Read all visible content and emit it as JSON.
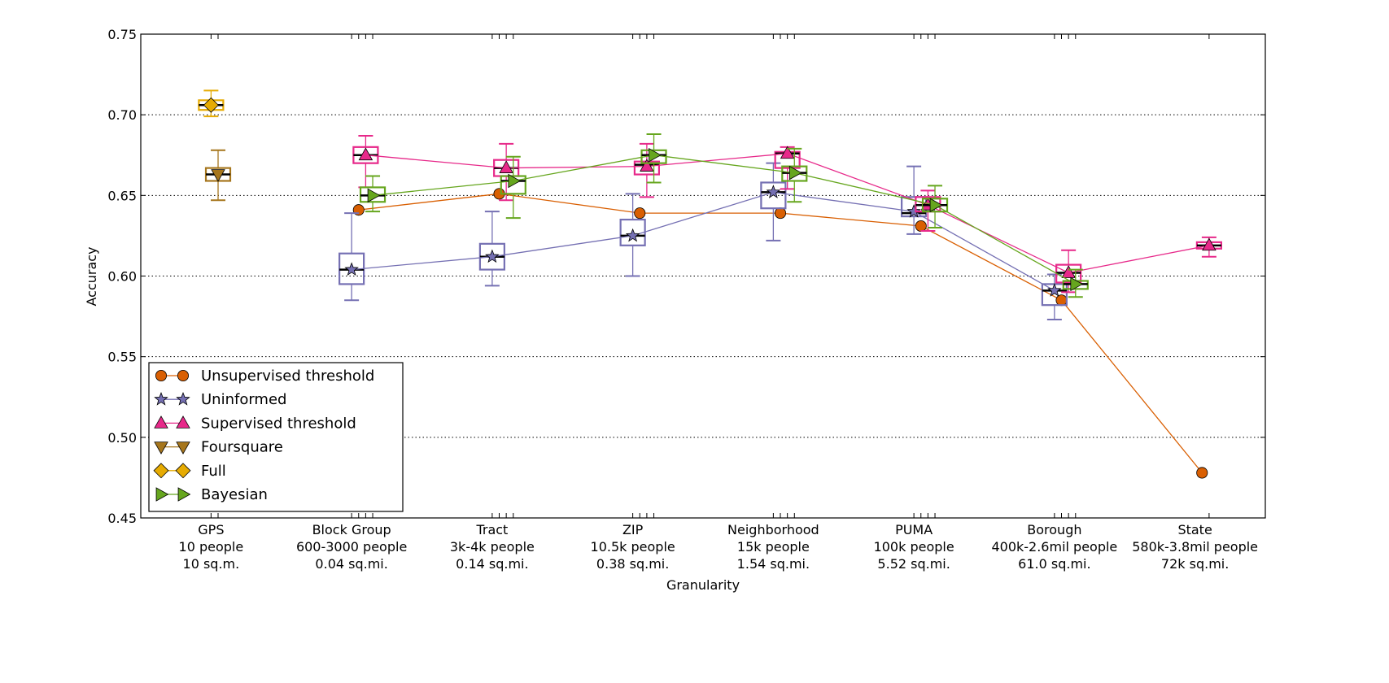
{
  "chart_data": {
    "type": "line",
    "title": "",
    "xlabel": "Granularity",
    "ylabel": "Accuracy",
    "ylim": [
      0.45,
      0.75
    ],
    "yticks": [
      "0.45",
      "0.50",
      "0.55",
      "0.60",
      "0.65",
      "0.70",
      "0.75"
    ],
    "grid": "horizontal dotted",
    "legend_position": "lower-left",
    "categories": [
      {
        "name": "GPS",
        "people": "10 people",
        "area": "10 sq.m."
      },
      {
        "name": "Block Group",
        "people": "600-3000 people",
        "area": "0.04 sq.mi."
      },
      {
        "name": "Tract",
        "people": "3k-4k people",
        "area": "0.14 sq.mi."
      },
      {
        "name": "ZIP",
        "people": "10.5k people",
        "area": "0.38 sq.mi."
      },
      {
        "name": "Neighborhood",
        "people": "15k people",
        "area": "1.54 sq.mi."
      },
      {
        "name": "PUMA",
        "people": "100k people",
        "area": "5.52 sq.mi."
      },
      {
        "name": "Borough",
        "people": "400k-2.6mil people",
        "area": "61.0 sq.mi."
      },
      {
        "name": "State",
        "people": "580k-3.8mil people",
        "area": "72k sq.mi."
      }
    ],
    "series": [
      {
        "name": "Unsupervised threshold",
        "color": "#d95f02",
        "marker": "circle",
        "offset": 0.05,
        "values": [
          null,
          0.641,
          0.651,
          0.639,
          0.639,
          0.631,
          0.585,
          0.478
        ],
        "boxes": [
          null,
          null,
          null,
          null,
          null,
          null,
          null,
          null
        ]
      },
      {
        "name": "Uninformed",
        "color": "#7570b3",
        "marker": "star",
        "offset": 0,
        "values": [
          null,
          0.604,
          0.612,
          0.625,
          0.652,
          0.64,
          0.591,
          null
        ],
        "boxes": [
          null,
          {
            "wlo": 0.585,
            "q1": 0.595,
            "med": 0.604,
            "q3": 0.614,
            "whi": 0.639
          },
          {
            "wlo": 0.594,
            "q1": 0.604,
            "med": 0.612,
            "q3": 0.62,
            "whi": 0.64
          },
          {
            "wlo": 0.6,
            "q1": 0.619,
            "med": 0.625,
            "q3": 0.635,
            "whi": 0.651
          },
          {
            "wlo": 0.622,
            "q1": 0.642,
            "med": 0.652,
            "q3": 0.658,
            "whi": 0.67
          },
          {
            "wlo": 0.626,
            "q1": 0.637,
            "med": 0.639,
            "q3": 0.649,
            "whi": 0.668
          },
          {
            "wlo": 0.573,
            "q1": 0.582,
            "med": 0.591,
            "q3": 0.595,
            "whi": 0.601
          },
          null
        ]
      },
      {
        "name": "Supervised threshold",
        "color": "#e7298a",
        "marker": "triangle-up",
        "offset": 0.1,
        "values": [
          null,
          0.675,
          0.667,
          0.668,
          0.676,
          0.644,
          0.602,
          0.619
        ],
        "boxes": [
          null,
          {
            "wlo": 0.655,
            "q1": 0.67,
            "med": 0.675,
            "q3": 0.68,
            "whi": 0.687
          },
          {
            "wlo": 0.647,
            "q1": 0.662,
            "med": 0.667,
            "q3": 0.672,
            "whi": 0.682
          },
          {
            "wlo": 0.649,
            "q1": 0.663,
            "med": 0.669,
            "q3": 0.671,
            "whi": 0.682
          },
          {
            "wlo": 0.654,
            "q1": 0.667,
            "med": 0.676,
            "q3": 0.677,
            "whi": 0.68
          },
          {
            "wlo": 0.628,
            "q1": 0.64,
            "med": 0.644,
            "q3": 0.649,
            "whi": 0.653
          },
          {
            "wlo": 0.59,
            "q1": 0.596,
            "med": 0.602,
            "q3": 0.607,
            "whi": 0.616
          },
          {
            "wlo": 0.612,
            "q1": 0.617,
            "med": 0.619,
            "q3": 0.621,
            "whi": 0.624
          }
        ]
      },
      {
        "name": "Foursquare",
        "color": "#a6761d",
        "marker": "triangle-down",
        "offset": 0.05,
        "values": [
          0.663,
          null,
          null,
          null,
          null,
          null,
          null,
          null
        ],
        "boxes": [
          {
            "wlo": 0.647,
            "q1": 0.659,
            "med": 0.663,
            "q3": 0.667,
            "whi": 0.678
          },
          null,
          null,
          null,
          null,
          null,
          null,
          null
        ]
      },
      {
        "name": "Full",
        "color": "#e6ab02",
        "marker": "diamond",
        "offset": 0,
        "values": [
          0.706,
          null,
          null,
          null,
          null,
          null,
          null,
          null
        ],
        "boxes": [
          {
            "wlo": 0.699,
            "q1": 0.703,
            "med": 0.706,
            "q3": 0.709,
            "whi": 0.715
          },
          null,
          null,
          null,
          null,
          null,
          null,
          null
        ]
      },
      {
        "name": "Bayesian",
        "color": "#66a61e",
        "marker": "triangle-right",
        "offset": 0.15,
        "values": [
          null,
          0.65,
          0.659,
          0.675,
          0.664,
          0.644,
          0.595,
          null
        ],
        "boxes": [
          null,
          {
            "wlo": 0.64,
            "q1": 0.646,
            "med": 0.65,
            "q3": 0.655,
            "whi": 0.662
          },
          {
            "wlo": 0.636,
            "q1": 0.651,
            "med": 0.659,
            "q3": 0.662,
            "whi": 0.674
          },
          {
            "wlo": 0.658,
            "q1": 0.67,
            "med": 0.675,
            "q3": 0.678,
            "whi": 0.688
          },
          {
            "wlo": 0.646,
            "q1": 0.659,
            "med": 0.664,
            "q3": 0.668,
            "whi": 0.679
          },
          {
            "wlo": 0.63,
            "q1": 0.64,
            "med": 0.644,
            "q3": 0.648,
            "whi": 0.656
          },
          {
            "wlo": 0.587,
            "q1": 0.592,
            "med": 0.595,
            "q3": 0.597,
            "whi": 0.604
          },
          null
        ]
      }
    ]
  }
}
